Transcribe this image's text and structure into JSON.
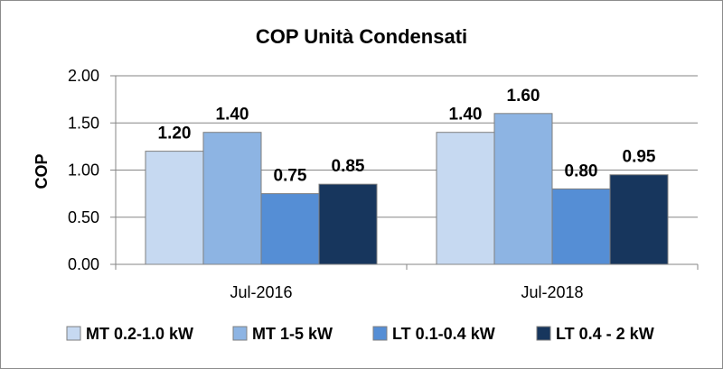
{
  "chart_data": {
    "type": "bar",
    "title": "COP Unità Condensati",
    "xlabel": "",
    "ylabel": "COP",
    "ylim": [
      0,
      2
    ],
    "yticks": [
      "0.00",
      "0.50",
      "1.00",
      "1.50",
      "2.00"
    ],
    "categories": [
      "Jul-2016",
      "Jul-2018"
    ],
    "series": [
      {
        "name": "MT 0.2-1.0 kW",
        "values": [
          1.2,
          1.4
        ],
        "labels": [
          "1.20",
          "1.40"
        ],
        "color": "#c6d9f1"
      },
      {
        "name": "MT 1-5 kW",
        "values": [
          1.4,
          1.6
        ],
        "labels": [
          "1.40",
          "1.60"
        ],
        "color": "#8db4e3"
      },
      {
        "name": "LT 0.1-0.4 kW",
        "values": [
          0.75,
          0.8
        ],
        "labels": [
          "0.75",
          "0.80"
        ],
        "color": "#558ed5"
      },
      {
        "name": "LT 0.4 - 2 kW",
        "values": [
          0.85,
          0.95
        ],
        "labels": [
          "0.85",
          "0.95"
        ],
        "color": "#17365d"
      }
    ],
    "grid": true,
    "legend": "bottom"
  }
}
